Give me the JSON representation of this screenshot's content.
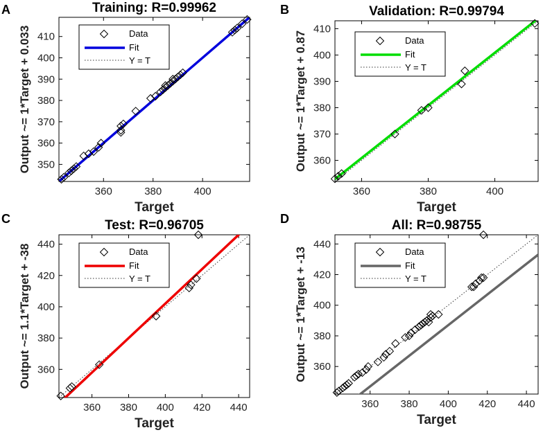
{
  "panels": [
    {
      "letter": "A",
      "title": "Training: R=0.99962",
      "ylabel": "Output ~= 1*Target + 0.033",
      "xlabel": "Target",
      "fit_color": "#0000dd",
      "legend": {
        "data": "Data",
        "fit": "Fit",
        "yt": "Y = T"
      },
      "chart_data": {
        "type": "scatter",
        "xlim": [
          342,
          419
        ],
        "ylim": [
          342,
          419
        ],
        "xticks": [
          360,
          380,
          400
        ],
        "yticks": [
          350,
          360,
          370,
          380,
          390,
          400,
          410
        ],
        "fit": {
          "slope": 1,
          "intercept": 0.033
        },
        "points": [
          [
            343,
            343
          ],
          [
            344,
            344
          ],
          [
            346,
            346
          ],
          [
            347,
            347
          ],
          [
            348,
            348
          ],
          [
            349,
            349
          ],
          [
            352,
            354
          ],
          [
            354,
            355
          ],
          [
            356,
            356
          ],
          [
            358,
            358
          ],
          [
            359,
            360
          ],
          [
            367,
            365
          ],
          [
            367,
            366
          ],
          [
            367,
            368
          ],
          [
            368,
            369
          ],
          [
            373,
            375
          ],
          [
            379,
            381
          ],
          [
            381,
            382
          ],
          [
            383,
            384
          ],
          [
            384,
            385
          ],
          [
            385,
            386
          ],
          [
            385,
            387
          ],
          [
            386,
            387
          ],
          [
            387,
            388
          ],
          [
            388,
            389
          ],
          [
            388,
            390
          ],
          [
            389,
            390
          ],
          [
            390,
            391
          ],
          [
            391,
            392
          ],
          [
            392,
            393
          ],
          [
            412,
            412
          ],
          [
            413,
            413
          ],
          [
            414,
            414
          ],
          [
            416,
            416
          ],
          [
            418,
            418
          ]
        ]
      }
    },
    {
      "letter": "B",
      "title": "Validation: R=0.99794",
      "ylabel": "Output ~= 1*Target + 0.87",
      "xlabel": "Target",
      "fit_color": "#00dd00",
      "legend": {
        "data": "Data",
        "fit": "Fit",
        "yt": "Y = T"
      },
      "chart_data": {
        "type": "scatter",
        "xlim": [
          352,
          413
        ],
        "ylim": [
          352,
          413
        ],
        "xticks": [
          360,
          380,
          400
        ],
        "yticks": [
          360,
          370,
          380,
          390,
          400,
          410
        ],
        "fit": {
          "slope": 1,
          "intercept": 0.87
        },
        "points": [
          [
            352,
            353
          ],
          [
            353,
            354
          ],
          [
            354,
            355
          ],
          [
            370,
            370
          ],
          [
            378,
            379
          ],
          [
            380,
            380
          ],
          [
            390,
            389
          ],
          [
            391,
            394
          ],
          [
            412,
            412
          ]
        ]
      }
    },
    {
      "letter": "C",
      "title": "Test: R=0.96705",
      "ylabel": "Output ~= 1.1*Target + -38",
      "xlabel": "Target",
      "fit_color": "#ee0000",
      "legend": {
        "data": "Data",
        "fit": "Fit",
        "yt": "Y = T"
      },
      "chart_data": {
        "type": "scatter",
        "xlim": [
          342,
          446
        ],
        "ylim": [
          342,
          446
        ],
        "xticks": [
          360,
          380,
          400,
          420,
          440
        ],
        "yticks": [
          360,
          380,
          400,
          420,
          440
        ],
        "fit": {
          "slope": 1.1,
          "intercept": -38
        },
        "points": [
          [
            343,
            343
          ],
          [
            348,
            348
          ],
          [
            349,
            349
          ],
          [
            364,
            363
          ],
          [
            395,
            394
          ],
          [
            413,
            412
          ],
          [
            414,
            414
          ],
          [
            417,
            418
          ],
          [
            418,
            446
          ]
        ]
      }
    },
    {
      "letter": "D",
      "title": "All: R=0.98755",
      "ylabel": "Output ~= 1*Target + -13",
      "xlabel": "Target",
      "fit_color": "#666666",
      "legend": {
        "data": "Data",
        "fit": "Fit",
        "yt": "Y = T"
      },
      "chart_data": {
        "type": "scatter",
        "xlim": [
          342,
          446
        ],
        "ylim": [
          342,
          446
        ],
        "xticks": [
          360,
          380,
          400,
          420,
          440
        ],
        "yticks": [
          360,
          380,
          400,
          420,
          440
        ],
        "fit": {
          "slope": 1,
          "intercept": -13
        },
        "points": [
          [
            343,
            343
          ],
          [
            344,
            344
          ],
          [
            346,
            346
          ],
          [
            347,
            347
          ],
          [
            348,
            348
          ],
          [
            349,
            349
          ],
          [
            352,
            353
          ],
          [
            353,
            354
          ],
          [
            354,
            355
          ],
          [
            356,
            356
          ],
          [
            358,
            358
          ],
          [
            359,
            360
          ],
          [
            364,
            363
          ],
          [
            367,
            366
          ],
          [
            368,
            368
          ],
          [
            370,
            370
          ],
          [
            373,
            375
          ],
          [
            378,
            379
          ],
          [
            380,
            380
          ],
          [
            381,
            382
          ],
          [
            383,
            384
          ],
          [
            385,
            386
          ],
          [
            386,
            387
          ],
          [
            387,
            388
          ],
          [
            388,
            389
          ],
          [
            389,
            390
          ],
          [
            390,
            389
          ],
          [
            391,
            392
          ],
          [
            391,
            394
          ],
          [
            392,
            393
          ],
          [
            395,
            394
          ],
          [
            412,
            412
          ],
          [
            413,
            412
          ],
          [
            414,
            414
          ],
          [
            416,
            416
          ],
          [
            417,
            418
          ],
          [
            418,
            418
          ],
          [
            418,
            446
          ]
        ]
      }
    }
  ]
}
